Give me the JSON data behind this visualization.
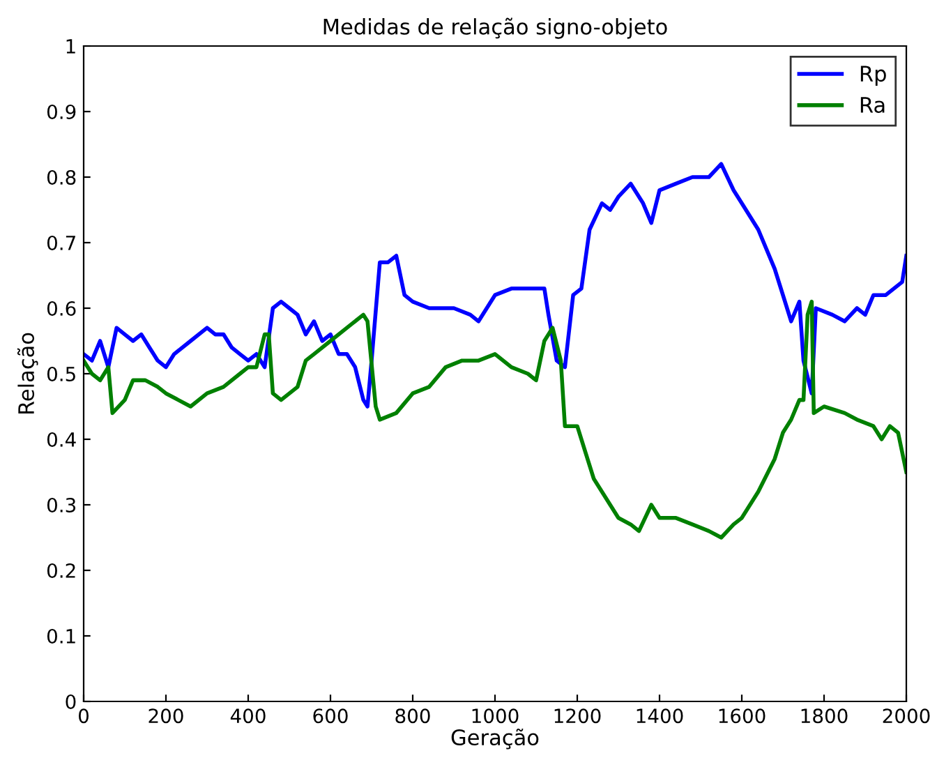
{
  "chart_data": {
    "type": "line",
    "title": "Medidas de relação signo-objeto",
    "xlabel": "Geração",
    "ylabel": "Relação",
    "xlim": [
      0,
      2000
    ],
    "xticks": [
      0,
      200,
      400,
      600,
      800,
      1000,
      1200,
      1400,
      1600,
      1800,
      2000
    ],
    "ylim": [
      0,
      1
    ],
    "yticks": [
      0,
      0.1,
      0.2,
      0.3,
      0.4,
      0.5,
      0.6,
      0.7,
      0.8,
      0.9,
      1
    ],
    "grid": false,
    "legend": "top right",
    "line_style": "solid",
    "marker": "none",
    "series": [
      {
        "name": "Rp",
        "color": "#0000ff",
        "x": [
          0,
          20,
          40,
          50,
          60,
          80,
          100,
          120,
          140,
          160,
          180,
          200,
          220,
          260,
          300,
          320,
          340,
          360,
          380,
          400,
          420,
          440,
          460,
          480,
          500,
          520,
          540,
          560,
          580,
          600,
          620,
          640,
          660,
          680,
          690,
          700,
          720,
          740,
          760,
          780,
          800,
          840,
          900,
          940,
          960,
          1000,
          1040,
          1080,
          1120,
          1130,
          1150,
          1170,
          1190,
          1210,
          1230,
          1260,
          1280,
          1300,
          1330,
          1360,
          1380,
          1400,
          1440,
          1480,
          1520,
          1550,
          1580,
          1600,
          1640,
          1680,
          1700,
          1720,
          1740,
          1750,
          1770,
          1780,
          1820,
          1850,
          1880,
          1900,
          1920,
          1950,
          1990,
          2000
        ],
        "values": [
          0.53,
          0.52,
          0.55,
          0.53,
          0.51,
          0.57,
          0.56,
          0.55,
          0.56,
          0.54,
          0.52,
          0.51,
          0.53,
          0.55,
          0.57,
          0.56,
          0.56,
          0.54,
          0.53,
          0.52,
          0.53,
          0.51,
          0.6,
          0.61,
          0.6,
          0.59,
          0.56,
          0.58,
          0.55,
          0.56,
          0.53,
          0.53,
          0.51,
          0.46,
          0.45,
          0.52,
          0.67,
          0.67,
          0.68,
          0.62,
          0.61,
          0.6,
          0.6,
          0.59,
          0.58,
          0.62,
          0.63,
          0.63,
          0.63,
          0.59,
          0.52,
          0.51,
          0.62,
          0.63,
          0.72,
          0.76,
          0.75,
          0.77,
          0.79,
          0.76,
          0.73,
          0.78,
          0.79,
          0.8,
          0.8,
          0.82,
          0.78,
          0.76,
          0.72,
          0.66,
          0.62,
          0.58,
          0.61,
          0.52,
          0.47,
          0.6,
          0.59,
          0.58,
          0.6,
          0.59,
          0.62,
          0.62,
          0.64,
          0.68
        ]
      },
      {
        "name": "Ra",
        "color": "#008000",
        "x": [
          0,
          20,
          40,
          60,
          70,
          100,
          120,
          150,
          180,
          200,
          230,
          260,
          300,
          340,
          380,
          400,
          420,
          440,
          450,
          460,
          480,
          520,
          540,
          560,
          600,
          640,
          680,
          690,
          710,
          720,
          760,
          800,
          840,
          880,
          920,
          960,
          1000,
          1040,
          1080,
          1100,
          1120,
          1140,
          1160,
          1170,
          1200,
          1220,
          1240,
          1260,
          1280,
          1300,
          1330,
          1350,
          1380,
          1400,
          1440,
          1480,
          1520,
          1550,
          1580,
          1600,
          1640,
          1680,
          1700,
          1720,
          1740,
          1750,
          1760,
          1770,
          1775,
          1800,
          1850,
          1880,
          1920,
          1940,
          1960,
          1980,
          2000
        ],
        "values": [
          0.52,
          0.5,
          0.49,
          0.51,
          0.44,
          0.46,
          0.49,
          0.49,
          0.48,
          0.47,
          0.46,
          0.45,
          0.47,
          0.48,
          0.5,
          0.51,
          0.51,
          0.56,
          0.56,
          0.47,
          0.46,
          0.48,
          0.52,
          0.53,
          0.55,
          0.57,
          0.59,
          0.58,
          0.45,
          0.43,
          0.44,
          0.47,
          0.48,
          0.51,
          0.52,
          0.52,
          0.53,
          0.51,
          0.5,
          0.49,
          0.55,
          0.57,
          0.52,
          0.42,
          0.42,
          0.38,
          0.34,
          0.32,
          0.3,
          0.28,
          0.27,
          0.26,
          0.3,
          0.28,
          0.28,
          0.27,
          0.26,
          0.25,
          0.27,
          0.28,
          0.32,
          0.37,
          0.41,
          0.43,
          0.46,
          0.46,
          0.59,
          0.61,
          0.44,
          0.45,
          0.44,
          0.43,
          0.42,
          0.4,
          0.42,
          0.41,
          0.35
        ]
      }
    ]
  }
}
